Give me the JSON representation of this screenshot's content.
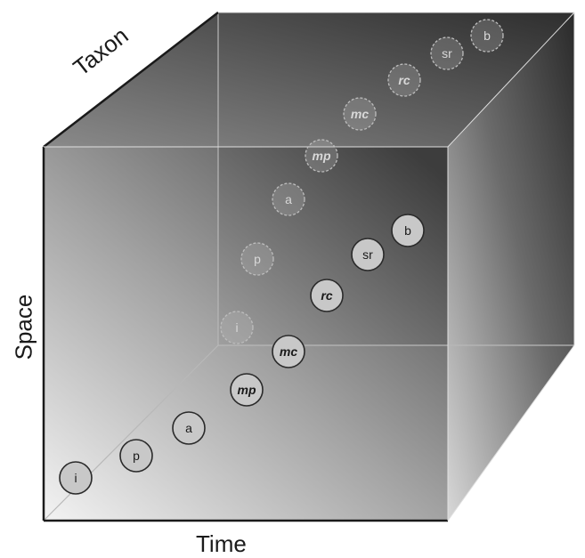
{
  "axes": {
    "x_label": "Time",
    "y_label": "Space",
    "z_label": "Taxon"
  },
  "front_nodes": [
    {
      "label": "i",
      "italic_bold": false
    },
    {
      "label": "p",
      "italic_bold": false
    },
    {
      "label": "a",
      "italic_bold": false
    },
    {
      "label": "mp",
      "italic_bold": true
    },
    {
      "label": "mc",
      "italic_bold": true
    },
    {
      "label": "rc",
      "italic_bold": true
    },
    {
      "label": "sr",
      "italic_bold": false
    },
    {
      "label": "b",
      "italic_bold": false
    }
  ],
  "back_nodes": [
    {
      "label": "i",
      "italic_bold": false
    },
    {
      "label": "p",
      "italic_bold": false
    },
    {
      "label": "a",
      "italic_bold": false
    },
    {
      "label": "mp",
      "italic_bold": true
    },
    {
      "label": "mc",
      "italic_bold": true
    },
    {
      "label": "rc",
      "italic_bold": true
    },
    {
      "label": "sr",
      "italic_bold": false
    },
    {
      "label": "b",
      "italic_bold": false
    }
  ],
  "colors": {
    "cube_edge": "#1a1a1a",
    "node_fill_front": "#c8c8c8",
    "node_stroke_front": "#2a2a2a",
    "node_stroke_back": "#bdbdbd"
  }
}
